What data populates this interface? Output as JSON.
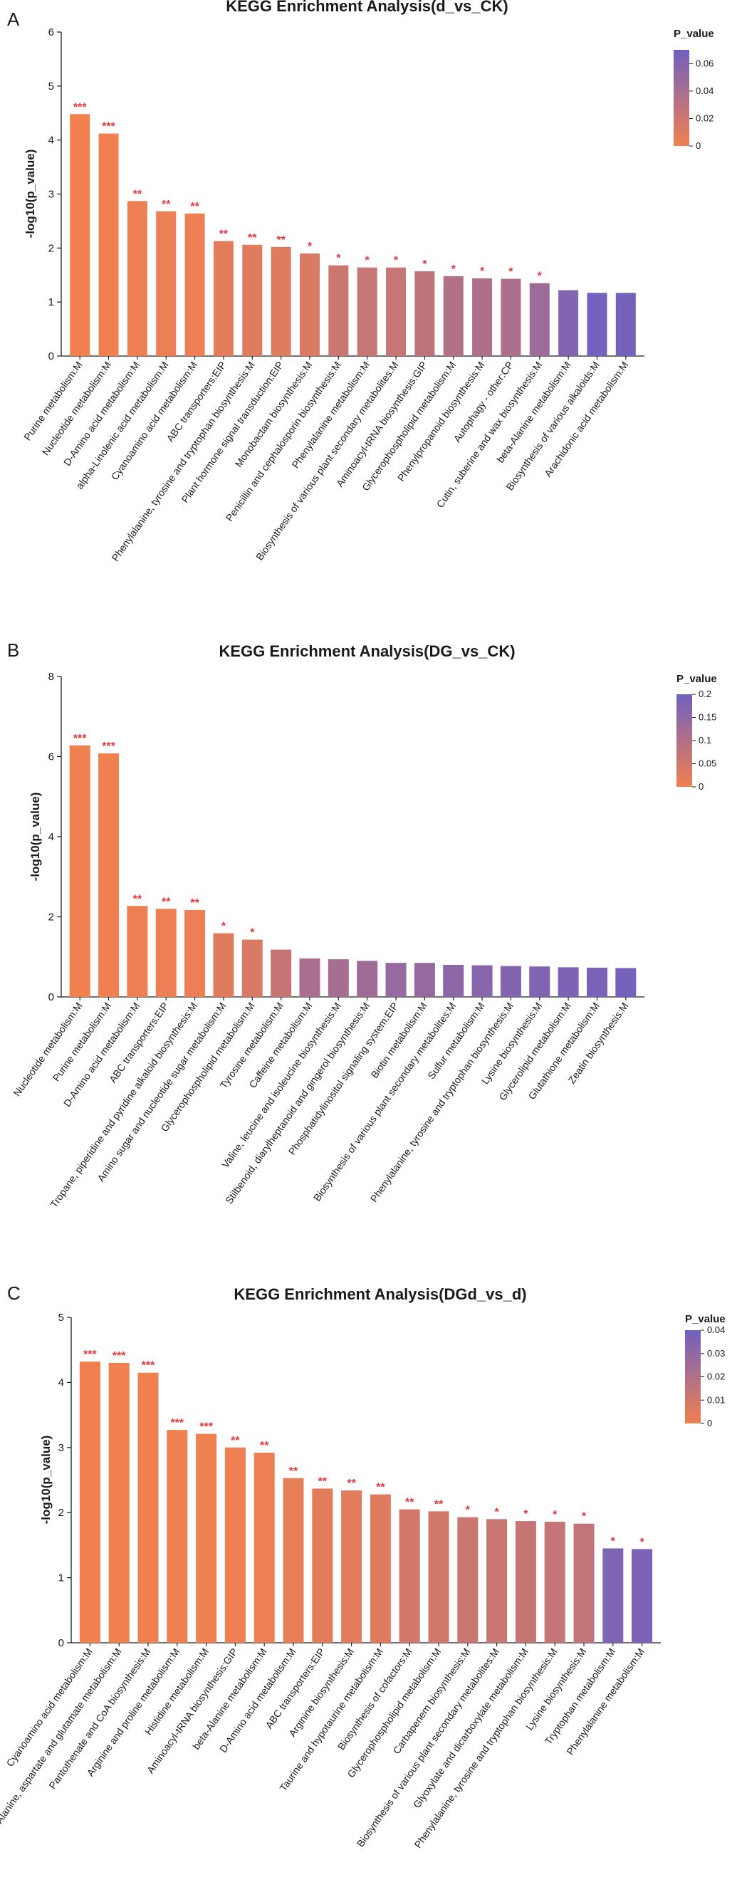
{
  "colors": {
    "low": "#f08050",
    "high": "#7060c0",
    "star": "#e0383d"
  },
  "chart_data": [
    {
      "panel": "A",
      "type": "bar",
      "title": "KEGG Enrichment Analysis(d_vs_CK)",
      "ylabel": "-log10(p_value)",
      "ylim": [
        0,
        6
      ],
      "yticks": [
        "0",
        "1",
        "2",
        "3",
        "4",
        "5",
        "6"
      ],
      "legend": {
        "title": "P_value",
        "ticks": [
          "0.06",
          "0.04",
          "0.02",
          "0"
        ],
        "range": [
          0,
          0.07
        ]
      },
      "categories": [
        "Purine metabolism:M",
        "Nucleotide metabolism:M",
        "D-Amino acid metabolism:M",
        "alpha-Linolenic acid metabolism:M",
        "Cyanoamino acid metabolism:M",
        "ABC transporters:EIP",
        "Phenylalanine, tyrosine and tryptophan biosynthesis:M",
        "Plant hormone signal transduction:EIP",
        "Monobactam biosynthesis:M",
        "Penicillin and cephalosporin biosynthesis:M",
        "Phenylalanine metabolism:M",
        "Biosynthesis of various plant secondary metabolites:M",
        "Aminoacyl-tRNA biosynthesis:GIP",
        "Glycerophospholipid metabolism:M",
        "Phenylpropanoid biosynthesis:M",
        "Autophagy - other:CP",
        "Cutin, suberine and wax biosynthesis:M",
        "beta-Alanine metabolism:M",
        "Biosynthesis of various alkaloids:M",
        "Arachidonic acid metabolism:M"
      ],
      "values": [
        4.48,
        4.12,
        2.87,
        2.68,
        2.64,
        2.13,
        2.06,
        2.02,
        1.9,
        1.68,
        1.64,
        1.64,
        1.57,
        1.48,
        1.44,
        1.43,
        1.35,
        1.22,
        1.17,
        1.17
      ],
      "p_values": [
        3e-05,
        8e-05,
        0.0014,
        0.0021,
        0.0023,
        0.0074,
        0.0087,
        0.0096,
        0.0126,
        0.0209,
        0.0229,
        0.0229,
        0.0269,
        0.0331,
        0.0363,
        0.0372,
        0.0447,
        0.0603,
        0.0676,
        0.0676
      ],
      "significance": [
        "***",
        "***",
        "**",
        "**",
        "**",
        "**",
        "**",
        "**",
        "*",
        "*",
        "*",
        "*",
        "*",
        "*",
        "*",
        "*",
        "*",
        "",
        "",
        ""
      ]
    },
    {
      "panel": "B",
      "type": "bar",
      "title": "KEGG Enrichment Analysis(DG_vs_CK)",
      "ylabel": "-log10(p_value)",
      "ylim": [
        0,
        8
      ],
      "yticks": [
        "0",
        "2",
        "4",
        "6",
        "8"
      ],
      "legend": {
        "title": "P_value",
        "ticks": [
          "0.2",
          "0.15",
          "0.1",
          "0.05",
          "0"
        ],
        "range": [
          0,
          0.2
        ]
      },
      "categories": [
        "Nucleotide metabolism:M",
        "Purine metabolism:M",
        "D-Amino acid metabolism:M",
        "ABC transporters:EIP",
        "Tropane, piperidine and pyridine alkaloid biosynthesis:M",
        "Amino sugar and nucleotide sugar metabolism:M",
        "Glycerophospholipid metabolism:M",
        "Tyrosine metabolism:M",
        "Caffeine metabolism:M",
        "Valine, leucine and isoleucine biosynthesis:M",
        "Stilbenoid, diarylheptanoid and gingerol biosynthesis:M",
        "Phosphatidylinositol signaling system:EIP",
        "Biotin metabolism:M",
        "Biosynthesis of various plant secondary metabolites:M",
        "Sulfur metabolism:M",
        "Phenylalanine, tyrosine and tryptophan biosynthesis:M",
        "Lysine biosynthesis:M",
        "Glycerolipid metabolism:M",
        "Glutathione metabolism:M",
        "Zeatin biosynthesis:M"
      ],
      "values": [
        6.28,
        6.08,
        2.27,
        2.2,
        2.17,
        1.59,
        1.43,
        1.18,
        0.96,
        0.94,
        0.9,
        0.85,
        0.85,
        0.8,
        0.79,
        0.77,
        0.76,
        0.74,
        0.73,
        0.72
      ],
      "p_values": [
        5e-07,
        8e-07,
        0.0054,
        0.0063,
        0.0068,
        0.0257,
        0.0372,
        0.066,
        0.11,
        0.115,
        0.126,
        0.141,
        0.141,
        0.158,
        0.162,
        0.17,
        0.174,
        0.182,
        0.186,
        0.19
      ],
      "significance": [
        "***",
        "***",
        "**",
        "**",
        "**",
        "*",
        "*",
        "",
        "",
        "",
        "",
        "",
        "",
        "",
        "",
        "",
        "",
        "",
        "",
        ""
      ]
    },
    {
      "panel": "C",
      "type": "bar",
      "title": "KEGG Enrichment Analysis(DGd_vs_d)",
      "ylabel": "-log10(p_value)",
      "ylim": [
        0,
        5
      ],
      "yticks": [
        "0",
        "1",
        "2",
        "3",
        "4",
        "5"
      ],
      "legend": {
        "title": "P_value",
        "ticks": [
          "0.04",
          "0.03",
          "0.02",
          "0.01",
          "0"
        ],
        "range": [
          0,
          0.04
        ]
      },
      "categories": [
        "Cyanoamino acid metabolism:M",
        "Alanine, aspartate and glutamate metabolism:M",
        "Pantothenate and CoA biosynthesis:M",
        "Arginine and proline metabolism:M",
        "Histidine metabolism:M",
        "Aminoacyl-tRNA biosynthesis:GIP",
        "beta-Alanine metabolism:M",
        "D-Amino acid metabolism:M",
        "ABC transporters:EIP",
        "Arginine biosynthesis:M",
        "Taurine and hypotaurine metabolism:M",
        "Biosynthesis of cofactors:M",
        "Glycerophospholipid metabolism:M",
        "Carbapenem biosynthesis:M",
        "Biosynthesis of various plant secondary metabolites:M",
        "Glyoxylate and dicarboxylate metabolism:M",
        "Phenylalanine, tyrosine and tryptophan biosynthesis:M",
        "Lysine biosynthesis:M",
        "Tryptophan metabolism:M",
        "Phenylalanine metabolism:M"
      ],
      "values": [
        4.32,
        4.3,
        4.15,
        3.27,
        3.21,
        3.0,
        2.92,
        2.53,
        2.37,
        2.34,
        2.28,
        2.05,
        2.02,
        1.93,
        1.9,
        1.87,
        1.86,
        1.83,
        1.45,
        1.44
      ],
      "p_values": [
        5e-05,
        5e-05,
        7e-05,
        0.0005,
        0.0006,
        0.001,
        0.0012,
        0.003,
        0.0043,
        0.0046,
        0.0052,
        0.0089,
        0.0095,
        0.0117,
        0.0126,
        0.0135,
        0.0138,
        0.0148,
        0.0355,
        0.0363
      ],
      "significance": [
        "***",
        "***",
        "***",
        "***",
        "***",
        "**",
        "**",
        "**",
        "**",
        "**",
        "**",
        "**",
        "**",
        "*",
        "*",
        "*",
        "*",
        "*",
        "*",
        "*"
      ]
    }
  ]
}
